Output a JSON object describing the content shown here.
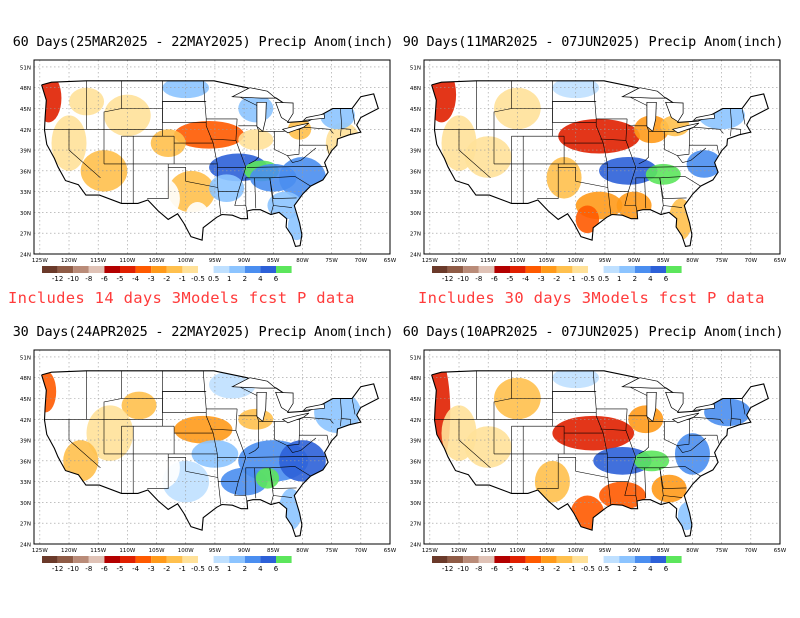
{
  "panels": [
    {
      "title": "60 Days(25MAR2025 - 22MAY2025) Precip Anom(inch)"
    },
    {
      "title": "90 Days(11MAR2025 - 07JUN2025) Precip Anom(inch)"
    },
    {
      "title": "30 Days(24APR2025 - 22MAY2025) Precip Anom(inch)"
    },
    {
      "title": "60 Days(10APR2025 - 07JUN2025) Precip Anom(inch)"
    }
  ],
  "notes": [
    "Includes 14 days 3Models fcst P data",
    "Includes 30 days 3Models fcst P data"
  ],
  "lat_labels": [
    "51N",
    "48N",
    "45N",
    "42N",
    "39N",
    "36N",
    "33N",
    "30N",
    "27N",
    "24N"
  ],
  "lon_labels": [
    "125W",
    "120W",
    "115W",
    "110W",
    "105W",
    "100W",
    "95W",
    "90W",
    "85W",
    "80W",
    "75W",
    "70W",
    "65W"
  ],
  "legend": {
    "labels": [
      "-12",
      "-10",
      "-8",
      "-6",
      "-5",
      "-4",
      "-3",
      "-2",
      "-1",
      "-0.5",
      "0.5",
      "1",
      "2",
      "4",
      "6"
    ],
    "colors": [
      "#6b3a2a",
      "#8f5b45",
      "#b98b78",
      "#e0c2b6",
      "#b30000",
      "#e02000",
      "#ff5a00",
      "#ff9a1a",
      "#ffc04d",
      "#ffe199",
      "#ffffff",
      "#bfe0ff",
      "#8cc4ff",
      "#4a8ef0",
      "#2c60d8",
      "#5ce65c"
    ]
  },
  "colors": {
    "note": "#ff3b3b",
    "grid": "#9a9a9a"
  }
}
